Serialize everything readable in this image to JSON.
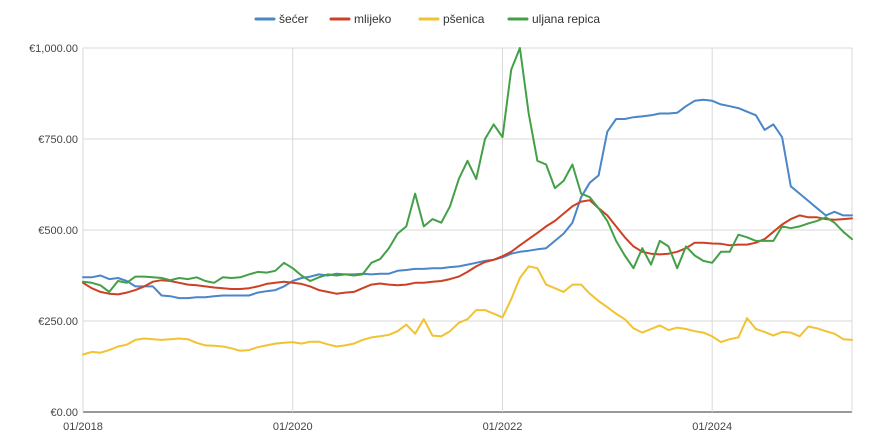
{
  "chart_data": {
    "type": "line",
    "title": "",
    "xlabel": "",
    "ylabel": "",
    "ylim": [
      0,
      1000
    ],
    "y_ticks": [
      0,
      250,
      500,
      750,
      1000
    ],
    "y_tick_labels": [
      "€0.00",
      "€250.00",
      "€500.00",
      "€750.00",
      "€1,000.00"
    ],
    "x_tick_labels": [
      "01/2018",
      "01/2020",
      "01/2022",
      "01/2024"
    ],
    "x_tick_dates": [
      "2018-01",
      "2020-01",
      "2022-01",
      "2024-01"
    ],
    "x_range": [
      "2018-01",
      "2025-05"
    ],
    "grid": true,
    "legend_position": "top-center",
    "dates": [
      "2018-01",
      "2018-02",
      "2018-03",
      "2018-04",
      "2018-05",
      "2018-06",
      "2018-07",
      "2018-08",
      "2018-09",
      "2018-10",
      "2018-11",
      "2018-12",
      "2019-01",
      "2019-02",
      "2019-03",
      "2019-04",
      "2019-05",
      "2019-06",
      "2019-07",
      "2019-08",
      "2019-09",
      "2019-10",
      "2019-11",
      "2019-12",
      "2020-01",
      "2020-02",
      "2020-03",
      "2020-04",
      "2020-05",
      "2020-06",
      "2020-07",
      "2020-08",
      "2020-09",
      "2020-10",
      "2020-11",
      "2020-12",
      "2021-01",
      "2021-02",
      "2021-03",
      "2021-04",
      "2021-05",
      "2021-06",
      "2021-07",
      "2021-08",
      "2021-09",
      "2021-10",
      "2021-11",
      "2021-12",
      "2022-01",
      "2022-02",
      "2022-03",
      "2022-04",
      "2022-05",
      "2022-06",
      "2022-07",
      "2022-08",
      "2022-09",
      "2022-10",
      "2022-11",
      "2022-12",
      "2023-01",
      "2023-02",
      "2023-03",
      "2023-04",
      "2023-05",
      "2023-06",
      "2023-07",
      "2023-08",
      "2023-09",
      "2023-10",
      "2023-11",
      "2023-12",
      "2024-01",
      "2024-02",
      "2024-03",
      "2024-04",
      "2024-05",
      "2024-06",
      "2024-07",
      "2024-08",
      "2024-09",
      "2024-10",
      "2024-11",
      "2024-12",
      "2025-01",
      "2025-02",
      "2025-03",
      "2025-04",
      "2025-05"
    ],
    "series": [
      {
        "name": "šećer",
        "color": "#4a86c8",
        "values": [
          370,
          370,
          375,
          365,
          368,
          360,
          345,
          345,
          345,
          320,
          318,
          313,
          313,
          315,
          315,
          318,
          320,
          320,
          320,
          320,
          328,
          332,
          335,
          345,
          360,
          368,
          372,
          378,
          375,
          380,
          378,
          378,
          380,
          378,
          380,
          380,
          388,
          390,
          393,
          393,
          395,
          395,
          398,
          400,
          405,
          410,
          415,
          418,
          425,
          435,
          440,
          443,
          447,
          450,
          470,
          490,
          520,
          590,
          630,
          650,
          770,
          805,
          805,
          810,
          812,
          815,
          820,
          820,
          822,
          840,
          855,
          858,
          855,
          845,
          840,
          835,
          825,
          815,
          775,
          790,
          755,
          620,
          600,
          580,
          560,
          540,
          550,
          540,
          540
        ]
      },
      {
        "name": "mlijeko",
        "color": "#cc4125",
        "values": [
          355,
          340,
          330,
          325,
          323,
          328,
          335,
          345,
          358,
          362,
          360,
          355,
          350,
          348,
          345,
          342,
          340,
          338,
          338,
          340,
          345,
          352,
          355,
          358,
          355,
          352,
          345,
          335,
          330,
          325,
          328,
          330,
          340,
          350,
          353,
          350,
          348,
          350,
          355,
          355,
          358,
          360,
          365,
          372,
          385,
          400,
          412,
          418,
          428,
          440,
          458,
          475,
          492,
          510,
          525,
          545,
          565,
          578,
          582,
          560,
          540,
          510,
          480,
          455,
          440,
          435,
          433,
          435,
          440,
          450,
          465,
          465,
          463,
          462,
          458,
          460,
          460,
          465,
          475,
          495,
          515,
          530,
          540,
          535,
          535,
          530,
          528,
          530,
          532
        ]
      },
      {
        "name": "pšenica",
        "color": "#f1c232",
        "values": [
          158,
          165,
          163,
          170,
          180,
          185,
          198,
          202,
          200,
          198,
          200,
          202,
          200,
          190,
          183,
          182,
          180,
          175,
          168,
          170,
          178,
          183,
          188,
          190,
          192,
          188,
          193,
          193,
          186,
          180,
          183,
          188,
          198,
          205,
          208,
          212,
          222,
          240,
          215,
          255,
          210,
          208,
          222,
          245,
          255,
          280,
          280,
          270,
          260,
          310,
          368,
          400,
          395,
          350,
          340,
          330,
          350,
          350,
          325,
          305,
          288,
          270,
          255,
          230,
          218,
          228,
          238,
          225,
          232,
          228,
          222,
          218,
          208,
          192,
          200,
          205,
          258,
          228,
          220,
          210,
          220,
          218,
          208,
          235,
          230,
          222,
          215,
          200,
          198
        ]
      },
      {
        "name": "uljana repica",
        "color": "#43a047",
        "values": [
          358,
          355,
          348,
          330,
          360,
          355,
          372,
          372,
          370,
          368,
          362,
          368,
          365,
          370,
          360,
          355,
          370,
          368,
          370,
          378,
          385,
          383,
          388,
          410,
          395,
          375,
          360,
          370,
          378,
          375,
          378,
          375,
          378,
          410,
          420,
          450,
          490,
          510,
          600,
          510,
          530,
          520,
          565,
          640,
          690,
          640,
          750,
          790,
          755,
          940,
          1000,
          820,
          690,
          680,
          615,
          635,
          680,
          600,
          590,
          560,
          525,
          470,
          430,
          395,
          450,
          405,
          470,
          455,
          395,
          455,
          430,
          415,
          410,
          440,
          440,
          487,
          480,
          470,
          470,
          470,
          510,
          505,
          510,
          518,
          525,
          535,
          520,
          495,
          475
        ]
      }
    ]
  }
}
